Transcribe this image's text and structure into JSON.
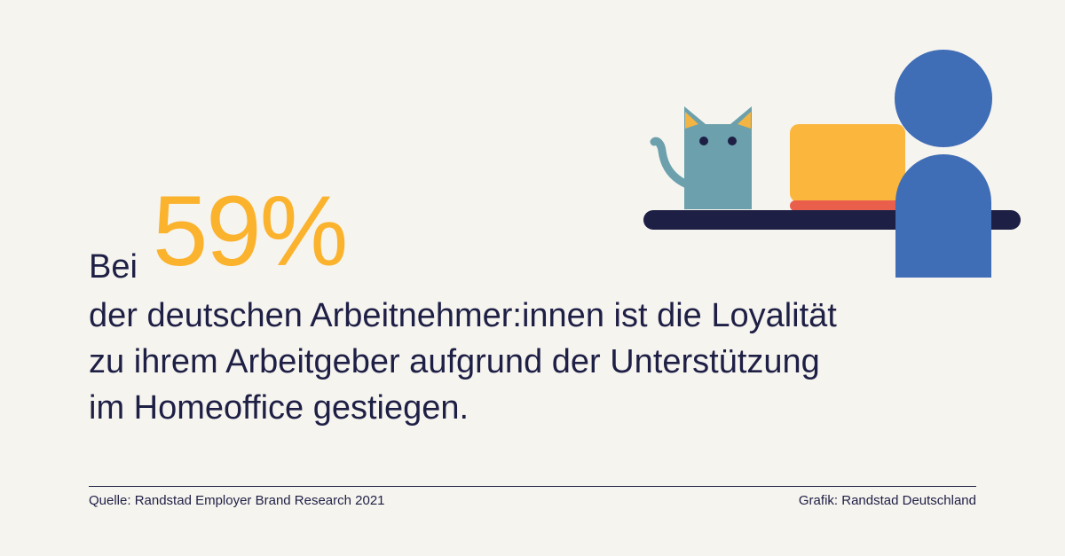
{
  "headline": {
    "prefix": "Bei",
    "highlight": "59%",
    "lines": [
      "der deutschen Arbeitnehmer:innen ist die Loyalität",
      "zu ihrem Arbeitgeber aufgrund der Unterstützung",
      "im Homeoffice gestiegen."
    ]
  },
  "footer": {
    "source": "Quelle: Randstad Employer Brand Research 2021",
    "credit": "Grafik: Randstad Deutschland"
  },
  "illustration": {
    "icons": [
      "cat-icon",
      "laptop-icon",
      "desk-icon",
      "person-icon"
    ],
    "colors": {
      "background": "#f6f4ef",
      "text": "#1e1f45",
      "accent": "#fbb22c",
      "cat": "#6ba0ac",
      "laptop": "#fab63d",
      "laptop_base": "#ea5f4b",
      "desk": "#1e1f45",
      "person": "#3f6db6"
    }
  }
}
